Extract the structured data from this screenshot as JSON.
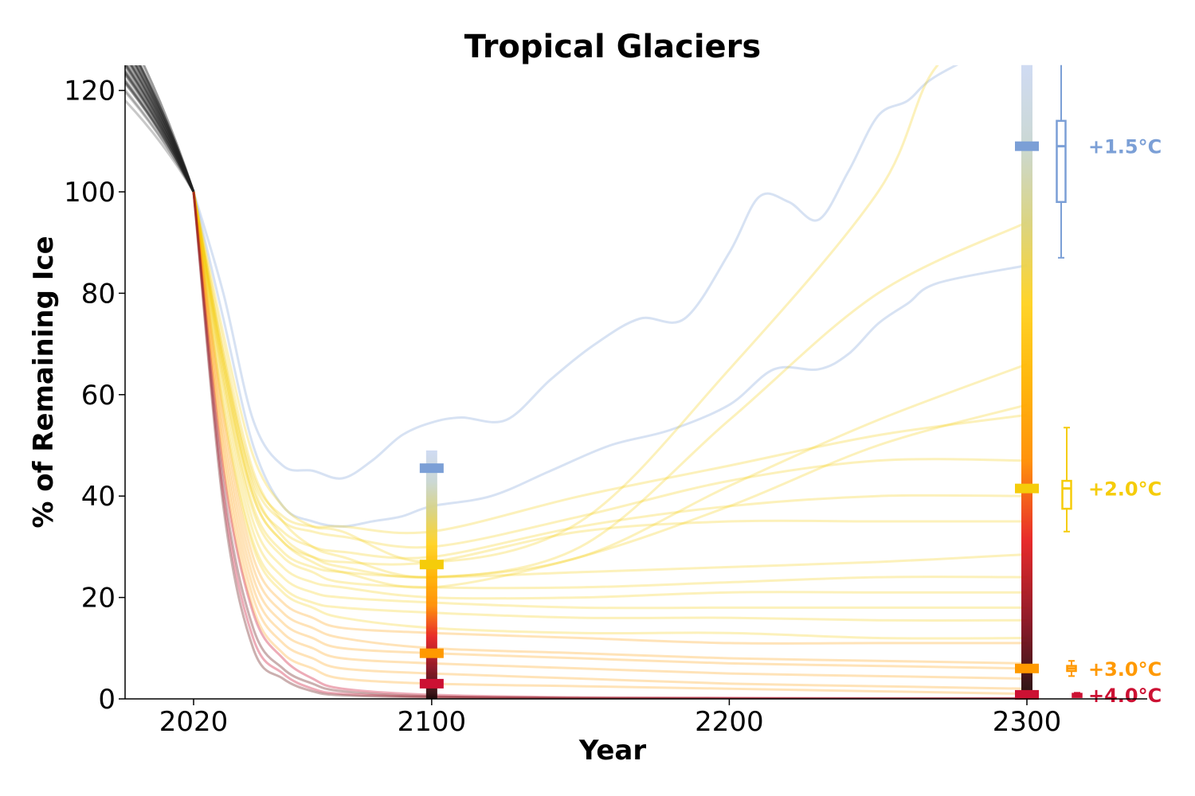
{
  "chart_data": {
    "type": "line",
    "title": "Tropical Glaciers",
    "xlabel": "Year",
    "ylabel": "% of Remaining Ice",
    "xlim": [
      1997,
      2320
    ],
    "ylim": [
      0,
      125
    ],
    "x_ticks": [
      2020,
      2100,
      2200,
      2300
    ],
    "y_ticks": [
      0,
      20,
      40,
      60,
      80,
      100,
      120
    ],
    "grid": false,
    "reference_year": 2020,
    "historical_spread": [
      118,
      130
    ],
    "scenarios": [
      {
        "name": "+1.5°C",
        "color": "#7b9fd6",
        "median_2100": 45.5,
        "median_2300": 109,
        "box_2300": [
          98,
          114
        ],
        "whisker_2300": [
          87,
          132
        ]
      },
      {
        "name": "+2.0°C",
        "color": "#f5cc0a",
        "median_2100": 26.5,
        "median_2300": 41.5,
        "box_2300": [
          37.5,
          43
        ],
        "whisker_2300": [
          33,
          53.5
        ]
      },
      {
        "name": "+3.0°C",
        "color": "#ff9900",
        "median_2100": 9,
        "median_2300": 6,
        "box_2300": [
          5.5,
          6.5
        ],
        "whisker_2300": [
          4.5,
          7.5
        ]
      },
      {
        "name": "+4.0°C",
        "color": "#cc1133",
        "median_2100": 3,
        "median_2300": 0.8,
        "box_2300": [
          0.8,
          1
        ],
        "whisker_2300": [
          0.6,
          1.2
        ]
      }
    ],
    "series": [
      {
        "scenario": "+1.5°C",
        "x": [
          2020,
          2030,
          2040,
          2050,
          2060,
          2070,
          2080,
          2090,
          2100,
          2110,
          2125,
          2140,
          2155,
          2170,
          2185,
          2200,
          2210,
          2220,
          2230,
          2240,
          2250,
          2260,
          2270,
          2300
        ],
        "y": [
          100,
          80,
          55,
          46,
          45,
          43.5,
          47,
          52,
          54.5,
          55.5,
          55,
          63,
          70,
          75,
          75,
          88,
          99,
          98,
          94.5,
          104,
          115,
          118,
          123,
          132
        ]
      },
      {
        "scenario": "+1.5°C",
        "x": [
          2020,
          2030,
          2040,
          2050,
          2060,
          2070,
          2080,
          2090,
          2100,
          2120,
          2140,
          2160,
          2180,
          2200,
          2215,
          2230,
          2240,
          2250,
          2260,
          2270,
          2300
        ],
        "y": [
          100,
          75,
          50,
          38,
          35,
          34,
          35,
          36,
          38,
          40,
          45,
          50,
          53,
          58,
          65,
          65,
          68,
          74,
          78,
          82,
          85.5
        ]
      },
      {
        "scenario": "+2.0°C",
        "x": [
          2020,
          2030,
          2040,
          2050,
          2060,
          2070,
          2100,
          2150,
          2200,
          2250,
          2270,
          2300
        ],
        "y": [
          100,
          72,
          48,
          38,
          34,
          33,
          27,
          35,
          65,
          100,
          125,
          135
        ]
      },
      {
        "scenario": "+2.0°C",
        "x": [
          2020,
          2030,
          2040,
          2050,
          2060,
          2070,
          2100,
          2150,
          2200,
          2250,
          2300
        ],
        "y": [
          100,
          70,
          45,
          35,
          30,
          28,
          24,
          30,
          55,
          80,
          94
        ]
      },
      {
        "scenario": "+2.0°C",
        "x": [
          2020,
          2030,
          2040,
          2050,
          2060,
          2070,
          2100,
          2150,
          2200,
          2250,
          2300
        ],
        "y": [
          100,
          68,
          42,
          32,
          28,
          26,
          24,
          28,
          42,
          55,
          66
        ]
      },
      {
        "scenario": "+2.0°C",
        "x": [
          2020,
          2030,
          2040,
          2050,
          2060,
          2070,
          2100,
          2150,
          2200,
          2250,
          2300
        ],
        "y": [
          100,
          66,
          40,
          31,
          27,
          25,
          22,
          28,
          38,
          50,
          58
        ]
      },
      {
        "scenario": "+2.0°C",
        "x": [
          2020,
          2030,
          2040,
          2050,
          2060,
          2070,
          2100,
          2150,
          2200,
          2250,
          2300
        ],
        "y": [
          100,
          68,
          44,
          36,
          34,
          34,
          33,
          40,
          46,
          52,
          56
        ]
      },
      {
        "scenario": "+2.0°C",
        "x": [
          2020,
          2030,
          2040,
          2050,
          2060,
          2070,
          2100,
          2150,
          2200,
          2250,
          2300
        ],
        "y": [
          100,
          67,
          43,
          35,
          33,
          32,
          30,
          36,
          43,
          47,
          47
        ]
      },
      {
        "scenario": "+2.0°C",
        "x": [
          2020,
          2030,
          2040,
          2050,
          2060,
          2070,
          2100,
          2150,
          2200,
          2250,
          2300
        ],
        "y": [
          100,
          66,
          41,
          33,
          30,
          29,
          28,
          34,
          38,
          40,
          40
        ]
      },
      {
        "scenario": "+2.0°C",
        "x": [
          2020,
          2030,
          2040,
          2050,
          2060,
          2070,
          2100,
          2150,
          2200,
          2250,
          2300
        ],
        "y": [
          100,
          65,
          40,
          31,
          28,
          27,
          27,
          33,
          35,
          35,
          35
        ]
      },
      {
        "scenario": "+2.0°C",
        "x": [
          2020,
          2030,
          2040,
          2050,
          2060,
          2070,
          2100,
          2150,
          2200,
          2250,
          2300
        ],
        "y": [
          100,
          64,
          38,
          29,
          26,
          25,
          24,
          25,
          26,
          27,
          28.5
        ]
      },
      {
        "scenario": "+2.0°C",
        "x": [
          2020,
          2030,
          2040,
          2050,
          2060,
          2070,
          2100,
          2150,
          2200,
          2250,
          2300
        ],
        "y": [
          100,
          63,
          37,
          28,
          25,
          23,
          22,
          22,
          23,
          24,
          24
        ]
      },
      {
        "scenario": "+2.0°C",
        "x": [
          2020,
          2030,
          2040,
          2050,
          2060,
          2070,
          2100,
          2150,
          2200,
          2250,
          2300
        ],
        "y": [
          100,
          62,
          35,
          26,
          23,
          22,
          20,
          20,
          21,
          21,
          21
        ]
      },
      {
        "scenario": "+2.0°C",
        "x": [
          2020,
          2030,
          2040,
          2050,
          2060,
          2070,
          2100,
          2150,
          2200,
          2250,
          2300
        ],
        "y": [
          100,
          60,
          33,
          24,
          21,
          20,
          19,
          18,
          18,
          18,
          18
        ]
      },
      {
        "scenario": "+2.0°C",
        "x": [
          2020,
          2030,
          2040,
          2050,
          2060,
          2070,
          2100,
          2150,
          2200,
          2250,
          2300
        ],
        "y": [
          100,
          58,
          31,
          22,
          19,
          18,
          17,
          16,
          16,
          15.5,
          15.5
        ]
      },
      {
        "scenario": "+2.0°C",
        "x": [
          2020,
          2030,
          2040,
          2050,
          2060,
          2070,
          2100,
          2150,
          2200,
          2250,
          2300
        ],
        "y": [
          100,
          57,
          30,
          21,
          18,
          16,
          14,
          13,
          13,
          12,
          12
        ]
      },
      {
        "scenario": "+3.0°C",
        "x": [
          2020,
          2030,
          2040,
          2050,
          2060,
          2070,
          2100,
          2150,
          2200,
          2250,
          2300
        ],
        "y": [
          100,
          56,
          28,
          19,
          16,
          14,
          13,
          12,
          11,
          11,
          11
        ]
      },
      {
        "scenario": "+3.0°C",
        "x": [
          2020,
          2030,
          2040,
          2050,
          2060,
          2070,
          2100,
          2150,
          2200,
          2250,
          2300
        ],
        "y": [
          100,
          54,
          26,
          17,
          14,
          12,
          10,
          9,
          8,
          7.5,
          7
        ]
      },
      {
        "scenario": "+3.0°C",
        "x": [
          2020,
          2030,
          2040,
          2050,
          2060,
          2070,
          2100,
          2150,
          2200,
          2250,
          2300
        ],
        "y": [
          100,
          52,
          24,
          15,
          12,
          10,
          9,
          8,
          7,
          6.5,
          6
        ]
      },
      {
        "scenario": "+3.0°C",
        "x": [
          2020,
          2030,
          2040,
          2050,
          2060,
          2070,
          2100,
          2150,
          2200,
          2250,
          2300
        ],
        "y": [
          100,
          50,
          22,
          13,
          10,
          8,
          7,
          6,
          5,
          4.5,
          4
        ]
      },
      {
        "scenario": "+3.0°C",
        "x": [
          2020,
          2030,
          2040,
          2050,
          2060,
          2070,
          2100,
          2150,
          2200,
          2250,
          2300
        ],
        "y": [
          100,
          48,
          20,
          11,
          8,
          6,
          5,
          4,
          3,
          2.5,
          2
        ]
      },
      {
        "scenario": "+3.0°C",
        "x": [
          2020,
          2030,
          2040,
          2050,
          2060,
          2070,
          2100,
          2150,
          2200,
          2250,
          2300
        ],
        "y": [
          100,
          46,
          18,
          9,
          6,
          4,
          3,
          2.5,
          2,
          1.5,
          1
        ]
      },
      {
        "scenario": "+4.0°C",
        "x": [
          2020,
          2030,
          2040,
          2050,
          2060,
          2070,
          2100,
          2150,
          2200,
          2250,
          2300
        ],
        "y": [
          100,
          45,
          17,
          8,
          4,
          2,
          0.8,
          0.3,
          0.2,
          0.1,
          0.1
        ]
      },
      {
        "scenario": "+4.0°C",
        "x": [
          2020,
          2030,
          2040,
          2050,
          2060,
          2070,
          2100,
          2150,
          2200,
          2250,
          2300
        ],
        "y": [
          100,
          42,
          14,
          6,
          3,
          1.5,
          0.5,
          0.2,
          0.1,
          0.1,
          0.1
        ]
      },
      {
        "scenario": "+4.0°C",
        "x": [
          2020,
          2030,
          2040,
          2050,
          2060,
          2070,
          2100,
          2150,
          2200,
          2250,
          2300
        ],
        "y": [
          100,
          40,
          12,
          5,
          2,
          1,
          0.4,
          0.1,
          0.1,
          0,
          0
        ]
      },
      {
        "scenario": "+4.0°C",
        "x": [
          2020,
          2030,
          2040,
          2050,
          2060,
          2070,
          2100,
          2150,
          2200,
          2250,
          2300
        ],
        "y": [
          100,
          38,
          10,
          4,
          1.5,
          0.7,
          0.3,
          0.1,
          0,
          0,
          0
        ]
      }
    ]
  },
  "colors": {
    "historical": "#222222",
    "warm_dark": "#6b1a1a",
    "ramp": [
      "#cdd9f2",
      "#c8d6d2",
      "#d9d27a",
      "#ffd21f",
      "#ffb300",
      "#ff8c00",
      "#e62020",
      "#8a0f1e",
      "#1a0808"
    ]
  }
}
